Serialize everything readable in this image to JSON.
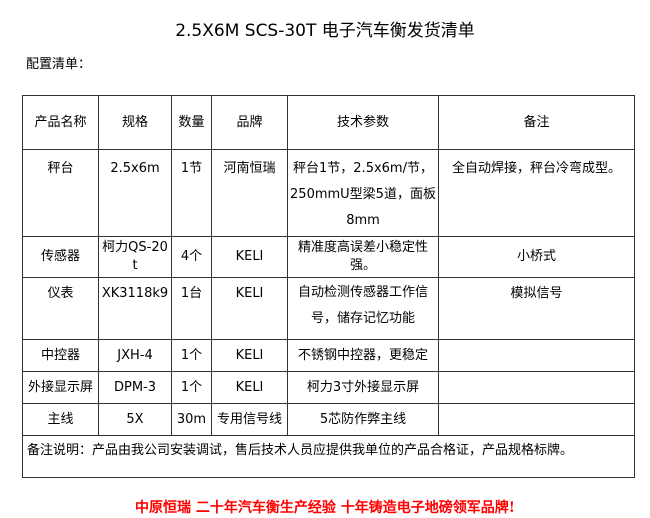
{
  "title": "2.5X6M SCS-30T 电子汽车衡发货清单",
  "subtitle": "配置清单：",
  "headers": [
    "产品名称",
    "规格",
    "数量",
    "品牌",
    "技术参数",
    "备注"
  ],
  "rows": [
    [
      "秤台",
      "2.5x6m",
      "1节",
      "河南恒瑞",
      "秤台1节，2.5x6m/节，250mmU型梁5道，面板8mm",
      "全自动焊接，秤台冷弯成型。"
    ],
    [
      "传感器",
      "柯力QS-20t",
      "4个",
      "KELI",
      "精准度高误差小稳定性强。",
      "小桥式"
    ],
    [
      "仪表",
      "XK3118k9",
      "1台",
      "KELI",
      "自动检测传感器工作信号，储存记忆功能",
      "模拟信号"
    ],
    [
      "中控器",
      "JXH-4",
      "1个",
      "KELI",
      "不锈钢中控器，更稳定",
      ""
    ],
    [
      "外接显示屏",
      "DPM-3",
      "1个",
      "KELI",
      "柯力3寸外接显示屏",
      ""
    ],
    [
      "主线",
      "5X",
      "30m",
      "专用信号线",
      "5芯防作弊主线",
      ""
    ]
  ],
  "note": "备注说明：产品由我公司安装调试，售后技术人员应提供我单位的产品合格证，产品规格标牌。",
  "slogan": "中原恒瑞 二十年汽车衡生产经验 十年铸造电子地磅领军品牌!"
}
